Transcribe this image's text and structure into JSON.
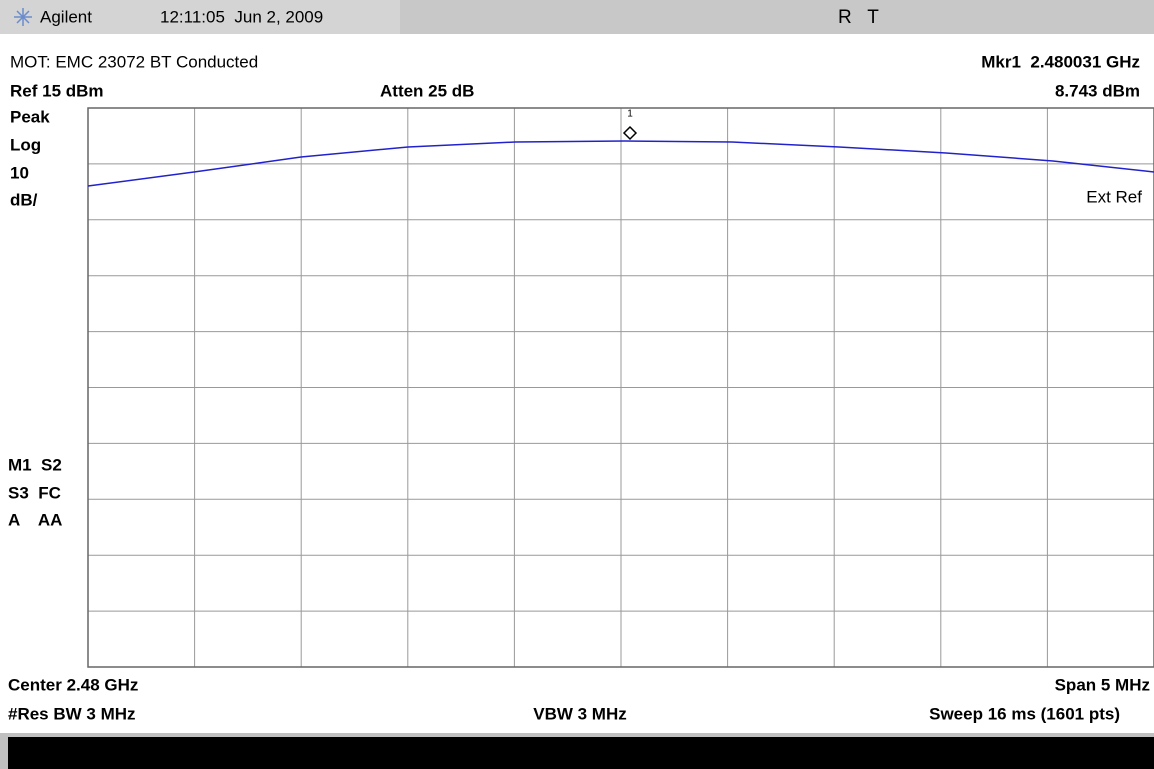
{
  "header": {
    "brand": "Agilent",
    "datetime": "12:11:05  Jun 2, 2009",
    "status": "R   T"
  },
  "info": {
    "title": "MOT: EMC 23072 BT Conducted",
    "marker": "Mkr1  2.480031 GHz",
    "ref": "Ref 15 dBm",
    "atten": "Atten 25 dB",
    "marker_level": "8.743 dBm"
  },
  "left_labels": [
    "Peak",
    "Log",
    "10",
    "dB/"
  ],
  "status_labels": [
    "M1  S2",
    "S3  FC",
    "A    AA"
  ],
  "screen": {
    "marker_number": "1",
    "ext_ref": "Ext Ref"
  },
  "footer": {
    "center": "Center 2.48 GHz",
    "span": "Span 5 MHz",
    "rbw": "#Res BW 3 MHz",
    "vbw": "VBW 3 MHz",
    "sweep": "Sweep 16 ms (1601 pts)"
  }
}
